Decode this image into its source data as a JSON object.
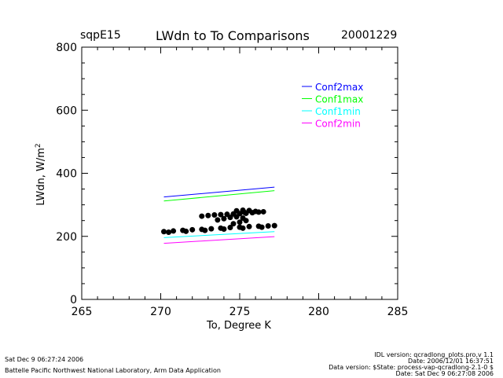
{
  "header": {
    "site": "sqpE15",
    "title": "LWdn to To Comparisons",
    "date": "20001229"
  },
  "chart_data": {
    "type": "line",
    "xlabel": "To, Degree K",
    "ylabel": "LWdn, W/m",
    "ylabel_sup": "2",
    "xlim": [
      265,
      285
    ],
    "ylim": [
      0,
      800
    ],
    "xticks": [
      265,
      270,
      275,
      280,
      285
    ],
    "yticks": [
      0,
      200,
      400,
      600,
      800
    ],
    "legend_position": "top-right",
    "series": [
      {
        "name": "Conf2max",
        "color": "#0000ff",
        "x": [
          270.2,
          277.2
        ],
        "y": [
          325,
          356
        ]
      },
      {
        "name": "Conf1max",
        "color": "#00ff00",
        "x": [
          270.2,
          277.2
        ],
        "y": [
          312,
          345
        ]
      },
      {
        "name": "Conf1min",
        "color": "#00ffff",
        "x": [
          270.2,
          277.2
        ],
        "y": [
          196,
          215
        ]
      },
      {
        "name": "Conf2min",
        "color": "#ff00ff",
        "x": [
          270.2,
          277.2
        ],
        "y": [
          178,
          199
        ]
      }
    ],
    "observations": {
      "color": "#000000",
      "points": [
        [
          270.2,
          215
        ],
        [
          270.8,
          217
        ],
        [
          271.4,
          219
        ],
        [
          272.0,
          221
        ],
        [
          272.6,
          222
        ],
        [
          273.2,
          224
        ],
        [
          273.8,
          226
        ],
        [
          274.4,
          228
        ],
        [
          275.0,
          229
        ],
        [
          275.6,
          231
        ],
        [
          276.2,
          232
        ],
        [
          276.8,
          233
        ],
        [
          277.2,
          234
        ],
        [
          270.5,
          213
        ],
        [
          271.6,
          216
        ],
        [
          272.8,
          219
        ],
        [
          274.0,
          223
        ],
        [
          275.2,
          226
        ],
        [
          276.4,
          229
        ],
        [
          272.6,
          264
        ],
        [
          273.0,
          266
        ],
        [
          273.4,
          268
        ],
        [
          273.8,
          269
        ],
        [
          274.2,
          270
        ],
        [
          274.6,
          271
        ],
        [
          275.0,
          272
        ],
        [
          275.4,
          273
        ],
        [
          275.8,
          275
        ],
        [
          276.2,
          277
        ],
        [
          276.5,
          278
        ],
        [
          274.8,
          281
        ],
        [
          275.2,
          283
        ],
        [
          275.6,
          282
        ],
        [
          276.0,
          279
        ],
        [
          275.3,
          276
        ],
        [
          273.6,
          252
        ],
        [
          274.0,
          256
        ],
        [
          274.4,
          260
        ],
        [
          274.8,
          262
        ],
        [
          275.2,
          258
        ],
        [
          275.4,
          250
        ],
        [
          275.0,
          245
        ],
        [
          274.6,
          240
        ]
      ]
    }
  },
  "footer": {
    "left_line1": "Sat Dec  9 06:27:24 2006",
    "left_line2": "Battelle Pacific Northwest National Laboratory, Arm Data Application",
    "right_line1": "IDL version: qcradlong_plots.pro,v 1.1",
    "right_line2": "Date: 2006/12/01 16:37:51",
    "right_line3": "Data version: $State: process-vap-qcradlong-2.1-0 $",
    "right_line4": "Date: Sat Dec  9 06:27:08 2006"
  }
}
